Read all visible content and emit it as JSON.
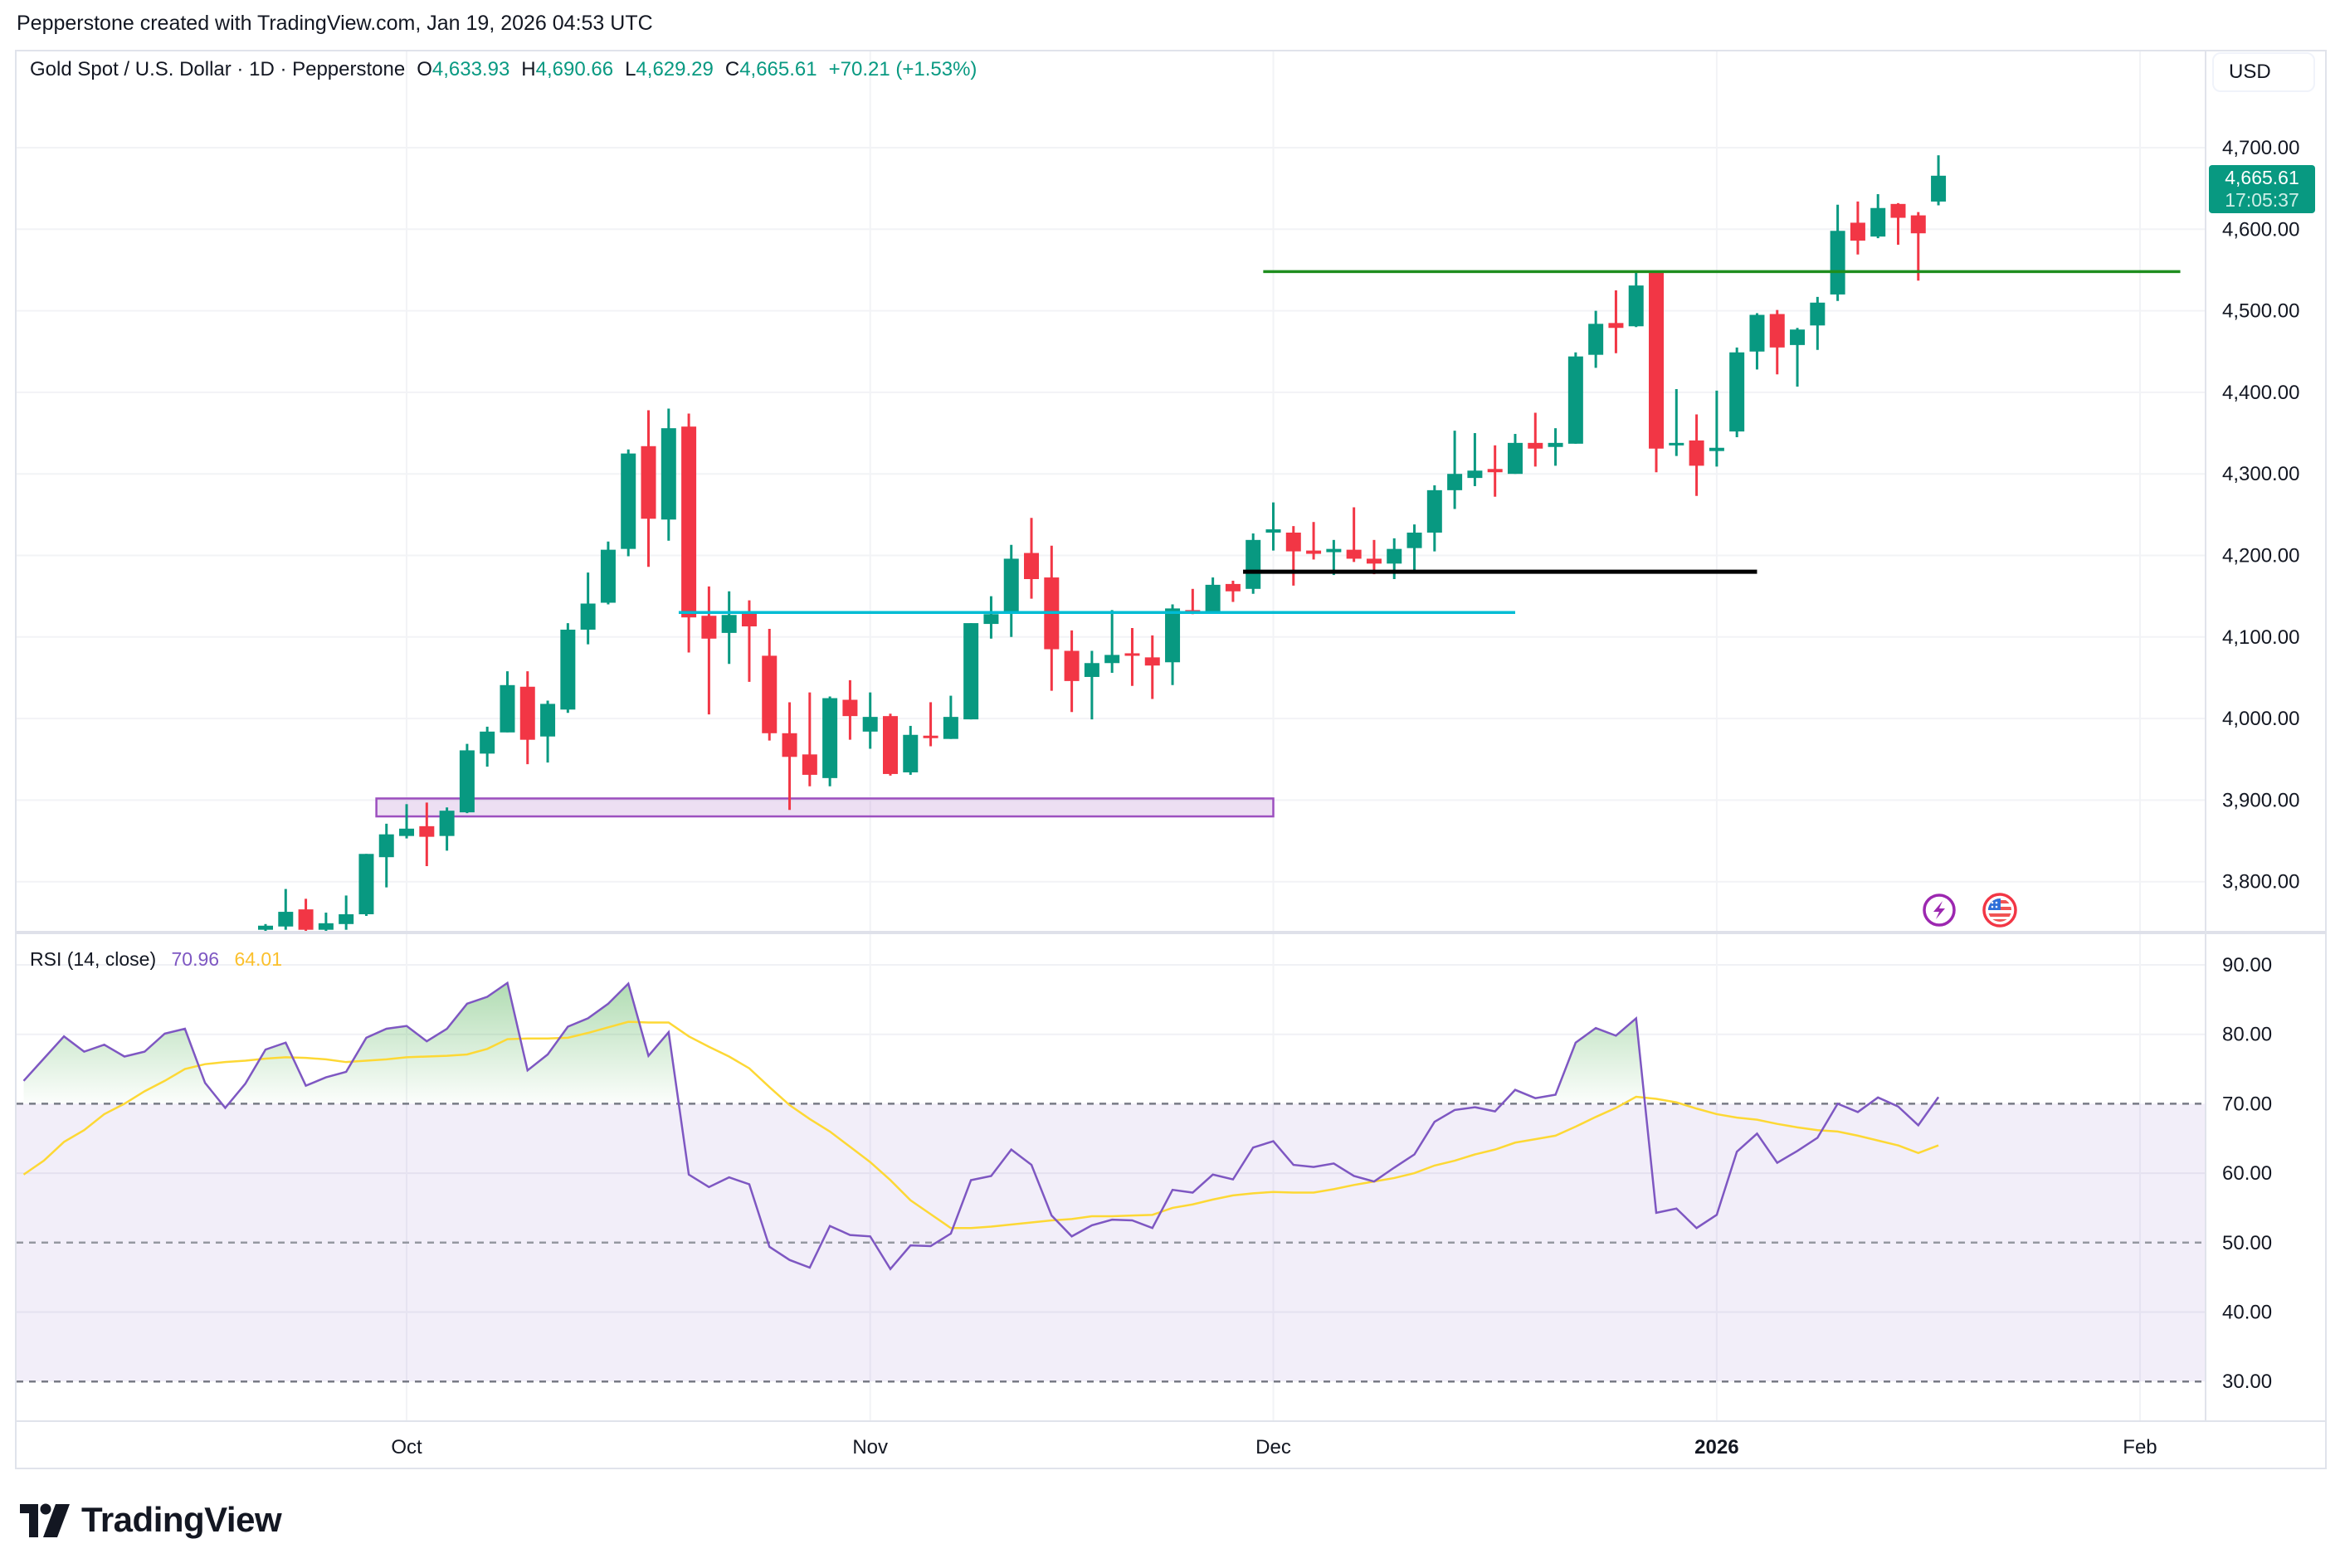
{
  "header": {
    "created_text": "Pepperstone created with TradingView.com, Jan 19, 2026 04:53 UTC"
  },
  "legend": {
    "symbol": "Gold Spot / U.S. Dollar · 1D · Pepperstone",
    "open_label": "O",
    "open": "4,633.93",
    "high_label": "H",
    "high": "4,690.66",
    "low_label": "L",
    "low": "4,629.29",
    "close_label": "C",
    "close": "4,665.61",
    "change": "+70.21 (+1.53%)"
  },
  "price_scale": {
    "currency": "USD",
    "last_price": "4,665.61",
    "countdown": "17:05:37",
    "ticks": [
      {
        "value": 4700,
        "label": "4,700.00"
      },
      {
        "value": 4600,
        "label": "4,600.00"
      },
      {
        "value": 4500,
        "label": "4,500.00"
      },
      {
        "value": 4400,
        "label": "4,400.00"
      },
      {
        "value": 4300,
        "label": "4,300.00"
      },
      {
        "value": 4200,
        "label": "4,200.00"
      },
      {
        "value": 4100,
        "label": "4,100.00"
      },
      {
        "value": 4000,
        "label": "4,000.00"
      },
      {
        "value": 3900,
        "label": "3,900.00"
      },
      {
        "value": 3800,
        "label": "3,800.00"
      }
    ]
  },
  "rsi_legend": {
    "title": "RSI (14, close)",
    "rsi_value": "70.96",
    "ma_value": "64.01"
  },
  "rsi_scale": {
    "ticks": [
      {
        "value": 90,
        "label": "90.00"
      },
      {
        "value": 80,
        "label": "80.00"
      },
      {
        "value": 70,
        "label": "70.00"
      },
      {
        "value": 60,
        "label": "60.00"
      },
      {
        "value": 50,
        "label": "50.00"
      },
      {
        "value": 40,
        "label": "40.00"
      },
      {
        "value": 30,
        "label": "30.00"
      }
    ],
    "bands": {
      "upper": 70,
      "middle": 50,
      "lower": 30
    }
  },
  "time_axis": [
    {
      "label": "Oct",
      "date": "2025-10-01",
      "bold": false
    },
    {
      "label": "Nov",
      "date": "2025-11-03",
      "bold": false
    },
    {
      "label": "Dec",
      "date": "2025-12-01",
      "bold": false
    },
    {
      "label": "2026",
      "date": "2026-01-02",
      "bold": true
    },
    {
      "label": "Feb",
      "date": "2026-02-02",
      "bold": false
    }
  ],
  "colors": {
    "up": "#089981",
    "down": "#f23645",
    "rsi": "#7e57c2",
    "rsi_ma": "#fdd835",
    "band": "#7e57c2",
    "overbought_fill": "#4caf50"
  },
  "events_icons": [
    {
      "icon": "lightning-event-icon",
      "color": "#9c27b0"
    },
    {
      "icon": "us-flag-economic-event-icon",
      "color": "#f23645"
    }
  ],
  "branding": {
    "logo_text": "TradingView"
  },
  "chart_data": [
    {
      "type": "candlestick",
      "title": "Gold Spot / U.S. Dollar · 1D · Pepperstone",
      "ylim": [
        3740,
        4790
      ],
      "columns": [
        "date",
        "open",
        "high",
        "low",
        "close"
      ],
      "candles": [
        [
          "2025-09-22",
          3741,
          3748,
          3738,
          3746
        ],
        [
          "2025-09-23",
          3745,
          3791,
          3741,
          3763
        ],
        [
          "2025-09-24",
          3766,
          3779,
          3738,
          3741
        ],
        [
          "2025-09-25",
          3741,
          3762,
          3738,
          3749
        ],
        [
          "2025-09-26",
          3748,
          3783,
          3741,
          3760
        ],
        [
          "2025-09-29",
          3760,
          3834,
          3758,
          3834
        ],
        [
          "2025-09-30",
          3830,
          3871,
          3793,
          3858
        ],
        [
          "2025-10-01",
          3856,
          3895,
          3853,
          3865
        ],
        [
          "2025-10-02",
          3868,
          3897,
          3819,
          3855
        ],
        [
          "2025-10-03",
          3856,
          3891,
          3838,
          3887
        ],
        [
          "2025-10-06",
          3885,
          3969,
          3884,
          3961
        ],
        [
          "2025-10-07",
          3957,
          3990,
          3941,
          3984
        ],
        [
          "2025-10-08",
          3983,
          4058,
          3983,
          4041
        ],
        [
          "2025-10-09",
          4039,
          4058,
          3944,
          3974
        ],
        [
          "2025-10-10",
          3978,
          4022,
          3946,
          4018
        ],
        [
          "2025-10-13",
          4011,
          4117,
          4007,
          4109
        ],
        [
          "2025-10-14",
          4109,
          4179,
          4091,
          4141
        ],
        [
          "2025-10-15",
          4142,
          4217,
          4140,
          4207
        ],
        [
          "2025-10-16",
          4208,
          4330,
          4199,
          4325
        ],
        [
          "2025-10-17",
          4334,
          4378,
          4186,
          4245
        ],
        [
          "2025-10-20",
          4244,
          4380,
          4218,
          4356
        ],
        [
          "2025-10-21",
          4358,
          4374,
          4081,
          4124
        ],
        [
          "2025-10-22",
          4126,
          4162,
          4005,
          4098
        ],
        [
          "2025-10-23",
          4105,
          4156,
          4067,
          4127
        ],
        [
          "2025-10-24",
          4129,
          4145,
          4045,
          4113
        ],
        [
          "2025-10-27",
          4077,
          4110,
          3973,
          3982
        ],
        [
          "2025-10-28",
          3982,
          4020,
          3888,
          3953
        ],
        [
          "2025-10-29",
          3956,
          4032,
          3917,
          3931
        ],
        [
          "2025-10-30",
          3927,
          4027,
          3917,
          4025
        ],
        [
          "2025-10-31",
          4023,
          4047,
          3974,
          4003
        ],
        [
          "2025-11-03",
          3984,
          4032,
          3963,
          4002
        ],
        [
          "2025-11-04",
          4003,
          4006,
          3930,
          3932
        ],
        [
          "2025-11-05",
          3934,
          3991,
          3931,
          3980
        ],
        [
          "2025-11-06",
          3979,
          4020,
          3966,
          3977
        ],
        [
          "2025-11-07",
          3975,
          4028,
          3975,
          4002
        ],
        [
          "2025-11-10",
          3999,
          4117,
          3999,
          4117
        ],
        [
          "2025-11-11",
          4116,
          4150,
          4098,
          4128
        ],
        [
          "2025-11-12",
          4129,
          4213,
          4100,
          4196
        ],
        [
          "2025-11-13",
          4203,
          4246,
          4147,
          4171
        ],
        [
          "2025-11-14",
          4173,
          4212,
          4034,
          4085
        ],
        [
          "2025-11-17",
          4083,
          4108,
          4008,
          4046
        ],
        [
          "2025-11-18",
          4051,
          4083,
          3999,
          4068
        ],
        [
          "2025-11-19",
          4068,
          4133,
          4056,
          4078
        ],
        [
          "2025-11-20",
          4080,
          4111,
          4040,
          4077
        ],
        [
          "2025-11-21",
          4075,
          4102,
          4024,
          4065
        ],
        [
          "2025-11-24",
          4069,
          4140,
          4041,
          4135
        ],
        [
          "2025-11-25",
          4133,
          4159,
          4128,
          4130
        ],
        [
          "2025-11-26",
          4131,
          4173,
          4130,
          4164
        ],
        [
          "2025-11-27",
          4165,
          4169,
          4143,
          4156
        ],
        [
          "2025-11-28",
          4159,
          4227,
          4153,
          4219
        ],
        [
          "2025-12-01",
          4228,
          4265,
          4206,
          4232
        ],
        [
          "2025-12-02",
          4228,
          4236,
          4163,
          4205
        ],
        [
          "2025-12-03",
          4206,
          4241,
          4195,
          4202
        ],
        [
          "2025-12-04",
          4204,
          4219,
          4176,
          4208
        ],
        [
          "2025-12-05",
          4207,
          4259,
          4192,
          4196
        ],
        [
          "2025-12-08",
          4196,
          4219,
          4177,
          4190
        ],
        [
          "2025-12-09",
          4190,
          4221,
          4171,
          4208
        ],
        [
          "2025-12-10",
          4209,
          4238,
          4182,
          4228
        ],
        [
          "2025-12-11",
          4228,
          4286,
          4205,
          4280
        ],
        [
          "2025-12-12",
          4280,
          4353,
          4257,
          4300
        ],
        [
          "2025-12-15",
          4295,
          4350,
          4285,
          4304
        ],
        [
          "2025-12-16",
          4306,
          4335,
          4272,
          4302
        ],
        [
          "2025-12-17",
          4300,
          4349,
          4300,
          4338
        ],
        [
          "2025-12-18",
          4338,
          4375,
          4309,
          4331
        ],
        [
          "2025-12-19",
          4333,
          4356,
          4310,
          4338
        ],
        [
          "2025-12-22",
          4337,
          4449,
          4337,
          4444
        ],
        [
          "2025-12-23",
          4446,
          4500,
          4430,
          4484
        ],
        [
          "2025-12-24",
          4485,
          4525,
          4448,
          4479
        ],
        [
          "2025-12-26",
          4481,
          4548,
          4480,
          4531
        ],
        [
          "2025-12-29",
          4548,
          4549,
          4302,
          4331
        ],
        [
          "2025-12-30",
          4337,
          4404,
          4322,
          4338
        ],
        [
          "2025-12-31",
          4341,
          4373,
          4273,
          4310
        ],
        [
          "2026-01-02",
          4328,
          4402,
          4309,
          4332
        ],
        [
          "2026-01-05",
          4352,
          4455,
          4345,
          4449
        ],
        [
          "2026-01-06",
          4450,
          4497,
          4428,
          4495
        ],
        [
          "2026-01-07",
          4496,
          4501,
          4422,
          4455
        ],
        [
          "2026-01-08",
          4458,
          4479,
          4407,
          4477
        ],
        [
          "2026-01-09",
          4482,
          4517,
          4452,
          4510
        ],
        [
          "2026-01-12",
          4520,
          4630,
          4512,
          4598
        ],
        [
          "2026-01-13",
          4608,
          4634,
          4569,
          4586
        ],
        [
          "2026-01-14",
          4591,
          4643,
          4589,
          4626
        ],
        [
          "2026-01-15",
          4631,
          4632,
          4581,
          4614
        ],
        [
          "2026-01-16",
          4617,
          4621,
          4537,
          4595
        ],
        [
          "2026-01-19",
          4633.93,
          4690.66,
          4629.29,
          4665.61
        ]
      ],
      "drawings": [
        {
          "kind": "horizontal-segment",
          "color": "#00bcd4",
          "price": 4130,
          "start": "2025-10-21",
          "end": "2025-12-17"
        },
        {
          "kind": "horizontal-segment",
          "color": "#000000",
          "price": 4180,
          "start": "2025-11-28",
          "end": "2026-01-06"
        },
        {
          "kind": "horizontal-segment",
          "color": "#1e8e1e",
          "price": 4548,
          "start": "2025-12-01",
          "end": "2026-02-04"
        },
        {
          "kind": "rectangle",
          "color": "#9c4fbf",
          "price_low": 3880,
          "price_high": 3902,
          "start": "2025-09-30",
          "end": "2025-12-01"
        }
      ]
    },
    {
      "type": "line",
      "title": "RSI (14, close)",
      "ylim": [
        25,
        95
      ],
      "dates": [
        "2025-09-04",
        "2025-09-05",
        "2025-09-08",
        "2025-09-09",
        "2025-09-10",
        "2025-09-11",
        "2025-09-12",
        "2025-09-15",
        "2025-09-16",
        "2025-09-17",
        "2025-09-18",
        "2025-09-19",
        "2025-09-22",
        "2025-09-23",
        "2025-09-24",
        "2025-09-25",
        "2025-09-26",
        "2025-09-29",
        "2025-09-30",
        "2025-10-01",
        "2025-10-02",
        "2025-10-03",
        "2025-10-06",
        "2025-10-07",
        "2025-10-08",
        "2025-10-09",
        "2025-10-10",
        "2025-10-13",
        "2025-10-14",
        "2025-10-15",
        "2025-10-16",
        "2025-10-17",
        "2025-10-20",
        "2025-10-21",
        "2025-10-22",
        "2025-10-23",
        "2025-10-24",
        "2025-10-27",
        "2025-10-28",
        "2025-10-29",
        "2025-10-30",
        "2025-10-31",
        "2025-11-03",
        "2025-11-04",
        "2025-11-05",
        "2025-11-06",
        "2025-11-07",
        "2025-11-10",
        "2025-11-11",
        "2025-11-12",
        "2025-11-13",
        "2025-11-14",
        "2025-11-17",
        "2025-11-18",
        "2025-11-19",
        "2025-11-20",
        "2025-11-21",
        "2025-11-24",
        "2025-11-25",
        "2025-11-26",
        "2025-11-27",
        "2025-11-28",
        "2025-12-01",
        "2025-12-02",
        "2025-12-03",
        "2025-12-04",
        "2025-12-05",
        "2025-12-08",
        "2025-12-09",
        "2025-12-10",
        "2025-12-11",
        "2025-12-12",
        "2025-12-15",
        "2025-12-16",
        "2025-12-17",
        "2025-12-18",
        "2025-12-19",
        "2025-12-22",
        "2025-12-23",
        "2025-12-24",
        "2025-12-26",
        "2025-12-29",
        "2025-12-30",
        "2025-12-31",
        "2026-01-02",
        "2026-01-05",
        "2026-01-06",
        "2026-01-07",
        "2026-01-08",
        "2026-01-09",
        "2026-01-12",
        "2026-01-13",
        "2026-01-14",
        "2026-01-15",
        "2026-01-16",
        "2026-01-19"
      ],
      "series": [
        {
          "name": "RSI",
          "values": [
            73.3,
            76.5,
            79.7,
            77.5,
            78.5,
            76.8,
            77.5,
            80.1,
            80.8,
            73.0,
            69.4,
            72.9,
            77.8,
            78.8,
            72.6,
            73.8,
            74.6,
            79.5,
            80.8,
            81.2,
            79.0,
            80.8,
            84.4,
            85.4,
            87.4,
            74.8,
            77.1,
            81.1,
            82.3,
            84.4,
            87.3,
            76.9,
            80.3,
            59.8,
            58.0,
            59.4,
            58.4,
            49.4,
            47.5,
            46.4,
            52.4,
            51.1,
            50.9,
            46.2,
            49.6,
            49.5,
            51.3,
            59.0,
            59.6,
            63.4,
            61.2,
            53.9,
            50.9,
            52.5,
            53.3,
            53.2,
            52.1,
            57.6,
            57.2,
            59.8,
            59.1,
            63.7,
            64.6,
            61.2,
            60.9,
            61.4,
            59.6,
            58.8,
            60.8,
            62.7,
            67.4,
            69.1,
            69.5,
            68.9,
            72.0,
            70.8,
            71.3,
            78.8,
            80.9,
            79.8,
            82.3,
            54.3,
            54.9,
            52.1,
            54.0,
            63.1,
            65.7,
            61.5,
            63.2,
            65.1,
            70.0,
            68.8,
            70.9,
            69.6,
            66.9,
            70.96
          ]
        },
        {
          "name": "MA",
          "values": [
            59.8,
            61.8,
            64.5,
            66.2,
            68.5,
            70.0,
            71.8,
            73.3,
            75.0,
            75.7,
            76.0,
            76.2,
            76.5,
            76.7,
            76.6,
            76.4,
            76.0,
            76.2,
            76.4,
            76.7,
            76.8,
            76.9,
            77.1,
            77.9,
            79.3,
            79.4,
            79.4,
            79.5,
            80.2,
            81.0,
            81.8,
            81.7,
            81.7,
            79.7,
            78.2,
            76.8,
            75.1,
            72.4,
            69.8,
            67.8,
            66.0,
            63.8,
            61.6,
            59.0,
            56.1,
            54.1,
            52.1,
            52.1,
            52.3,
            52.6,
            52.9,
            53.2,
            53.4,
            53.8,
            53.8,
            53.9,
            54.0,
            55.0,
            55.5,
            56.2,
            56.8,
            57.1,
            57.3,
            57.2,
            57.2,
            57.7,
            58.3,
            58.8,
            59.3,
            60.0,
            61.1,
            61.8,
            62.7,
            63.4,
            64.4,
            64.9,
            65.4,
            66.7,
            68.1,
            69.4,
            71.0,
            70.7,
            70.2,
            69.3,
            68.5,
            68.0,
            67.7,
            67.1,
            66.6,
            66.2,
            66.0,
            65.4,
            64.7,
            64.0,
            62.9,
            64.01
          ]
        }
      ]
    }
  ]
}
